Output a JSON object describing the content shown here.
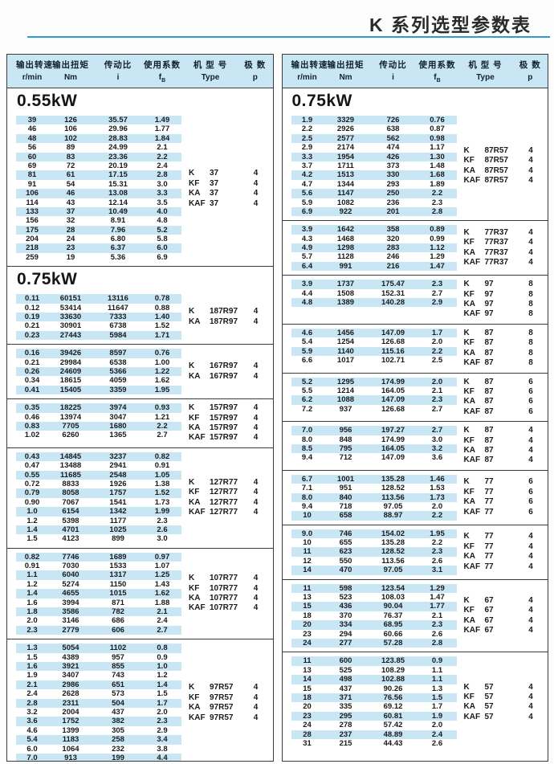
{
  "page": {
    "title": "K 系列选型参数表"
  },
  "table": {
    "headers": [
      {
        "cn": "输出转速",
        "unit": "r/min"
      },
      {
        "cn": "输出扭矩",
        "unit": "Nm"
      },
      {
        "cn": "传动比",
        "unit": "i"
      },
      {
        "cn": "使用系数",
        "unit": "fB"
      },
      {
        "cn": "机 型 号",
        "unit": "Type"
      },
      {
        "cn": "极 数",
        "unit": "p"
      }
    ],
    "left_column": [
      {
        "kind": "power",
        "label": "0.55kW"
      },
      {
        "kind": "section",
        "rows": [
          [
            "39",
            "126",
            "35.57",
            "1.49"
          ],
          [
            "46",
            "106",
            "29.96",
            "1.77"
          ],
          [
            "48",
            "102",
            "28.83",
            "1.84"
          ],
          [
            "56",
            "89",
            "24.99",
            "2.1"
          ],
          [
            "60",
            "83",
            "23.36",
            "2.2"
          ],
          [
            "69",
            "72",
            "20.19",
            "2.4"
          ],
          [
            "81",
            "61",
            "17.15",
            "2.8"
          ],
          [
            "91",
            "54",
            "15.31",
            "3.0"
          ],
          [
            "106",
            "46",
            "13.08",
            "3.3"
          ],
          [
            "114",
            "43",
            "12.14",
            "3.5"
          ],
          [
            "133",
            "37",
            "10.49",
            "4.0"
          ],
          [
            "156",
            "32",
            "8.91",
            "4.8"
          ],
          [
            "175",
            "28",
            "7.96",
            "5.2"
          ],
          [
            "204",
            "24",
            "6.80",
            "5.8"
          ],
          [
            "218",
            "23",
            "6.37",
            "6.0"
          ],
          [
            "259",
            "19",
            "5.36",
            "6.9"
          ]
        ],
        "types": [
          [
            "K",
            "37",
            "4"
          ],
          [
            "KF",
            "37",
            "4"
          ],
          [
            "KA",
            "37",
            "4"
          ],
          [
            "KAF",
            "37",
            "4"
          ]
        ]
      },
      {
        "kind": "power",
        "label": "0.75kW"
      },
      {
        "kind": "section",
        "rows": [
          [
            "0.11",
            "60151",
            "13116",
            "0.78"
          ],
          [
            "0.12",
            "53414",
            "11647",
            "0.88"
          ],
          [
            "0.19",
            "33630",
            "7333",
            "1.40"
          ],
          [
            "0.21",
            "30901",
            "6738",
            "1.52"
          ],
          [
            "0.23",
            "27443",
            "5984",
            "1.71"
          ]
        ],
        "types": [
          [
            "K",
            "187R97",
            "4"
          ],
          [
            "KA",
            "187R97",
            "4"
          ]
        ]
      },
      {
        "kind": "section",
        "rows": [
          [
            "0.16",
            "39426",
            "8597",
            "0.76"
          ],
          [
            "0.21",
            "29984",
            "6538",
            "1.00"
          ],
          [
            "0.26",
            "24609",
            "5366",
            "1.22"
          ],
          [
            "0.34",
            "18615",
            "4059",
            "1.62"
          ],
          [
            "0.41",
            "15405",
            "3359",
            "1.95"
          ]
        ],
        "types": [
          [
            "K",
            "167R97",
            "4"
          ],
          [
            "KA",
            "167R97",
            "4"
          ]
        ]
      },
      {
        "kind": "section",
        "rows": [
          [
            "0.35",
            "18225",
            "3974",
            "0.93"
          ],
          [
            "0.46",
            "13974",
            "3047",
            "1.21"
          ],
          [
            "0.83",
            "7705",
            "1680",
            "2.2"
          ],
          [
            "1.02",
            "6260",
            "1365",
            "2.7"
          ]
        ],
        "types": [
          [
            "K",
            "157R97",
            "4"
          ],
          [
            "KF",
            "157R97",
            "4"
          ],
          [
            "KA",
            "157R97",
            "4"
          ],
          [
            "KAF",
            "157R97",
            "4"
          ]
        ]
      },
      {
        "kind": "section",
        "rows": [
          [
            "0.43",
            "14845",
            "3237",
            "0.82"
          ],
          [
            "0.47",
            "13488",
            "2941",
            "0.91"
          ],
          [
            "0.55",
            "11685",
            "2548",
            "1.05"
          ],
          [
            "0.72",
            "8833",
            "1926",
            "1.38"
          ],
          [
            "0.79",
            "8058",
            "1757",
            "1.52"
          ],
          [
            "0.90",
            "7067",
            "1541",
            "1.73"
          ],
          [
            "1.0",
            "6154",
            "1342",
            "1.99"
          ],
          [
            "1.2",
            "5398",
            "1177",
            "2.3"
          ],
          [
            "1.4",
            "4701",
            "1025",
            "2.6"
          ],
          [
            "1.5",
            "4123",
            "899",
            "3.0"
          ]
        ],
        "types": [
          [
            "K",
            "127R77",
            "4"
          ],
          [
            "KF",
            "127R77",
            "4"
          ],
          [
            "KA",
            "127R77",
            "4"
          ],
          [
            "KAF",
            "127R77",
            "4"
          ]
        ]
      },
      {
        "kind": "section",
        "rows": [
          [
            "0.82",
            "7746",
            "1689",
            "0.97"
          ],
          [
            "0.91",
            "7030",
            "1533",
            "1.07"
          ],
          [
            "1.1",
            "6040",
            "1317",
            "1.25"
          ],
          [
            "1.2",
            "5274",
            "1150",
            "1.43"
          ],
          [
            "1.4",
            "4655",
            "1015",
            "1.62"
          ],
          [
            "1.6",
            "3994",
            "871",
            "1.88"
          ],
          [
            "1.8",
            "3586",
            "782",
            "2.1"
          ],
          [
            "2.0",
            "3146",
            "686",
            "2.4"
          ],
          [
            "2.3",
            "2779",
            "606",
            "2.7"
          ]
        ],
        "types": [
          [
            "K",
            "107R77",
            "4"
          ],
          [
            "KF",
            "107R77",
            "4"
          ],
          [
            "KA",
            "107R77",
            "4"
          ],
          [
            "KAF",
            "107R77",
            "4"
          ]
        ]
      },
      {
        "kind": "section",
        "rows": [
          [
            "1.3",
            "5054",
            "1102",
            "0.8"
          ],
          [
            "1.5",
            "4389",
            "957",
            "0.9"
          ],
          [
            "1.6",
            "3921",
            "855",
            "1.0"
          ],
          [
            "1.9",
            "3407",
            "743",
            "1.2"
          ],
          [
            "2.1",
            "2986",
            "651",
            "1.4"
          ],
          [
            "2.4",
            "2628",
            "573",
            "1.5"
          ],
          [
            "2.8",
            "2311",
            "504",
            "1.7"
          ],
          [
            "3.2",
            "2004",
            "437",
            "2.0"
          ],
          [
            "3.6",
            "1752",
            "382",
            "2.3"
          ],
          [
            "4.6",
            "1399",
            "305",
            "2.9"
          ],
          [
            "5.4",
            "1183",
            "258",
            "3.4"
          ],
          [
            "6.0",
            "1064",
            "232",
            "3.8"
          ],
          [
            "7.0",
            "913",
            "199",
            "4.4"
          ]
        ],
        "types": [
          [
            "K",
            "97R57",
            "4"
          ],
          [
            "KF",
            "97R57",
            "4"
          ],
          [
            "KA",
            "97R57",
            "4"
          ],
          [
            "KAF",
            "97R57",
            "4"
          ]
        ]
      }
    ],
    "right_column": [
      {
        "kind": "power",
        "label": "0.75kW"
      },
      {
        "kind": "section",
        "rows": [
          [
            "1.9",
            "3329",
            "726",
            "0.76"
          ],
          [
            "2.2",
            "2926",
            "638",
            "0.87"
          ],
          [
            "2.5",
            "2577",
            "562",
            "0.98"
          ],
          [
            "2.9",
            "2174",
            "474",
            "1.17"
          ],
          [
            "3.3",
            "1954",
            "426",
            "1.30"
          ],
          [
            "3.7",
            "1711",
            "373",
            "1.48"
          ],
          [
            "4.2",
            "1513",
            "330",
            "1.68"
          ],
          [
            "4.7",
            "1344",
            "293",
            "1.89"
          ],
          [
            "5.6",
            "1147",
            "250",
            "2.2"
          ],
          [
            "5.9",
            "1082",
            "236",
            "2.3"
          ],
          [
            "6.9",
            "922",
            "201",
            "2.8"
          ]
        ],
        "types": [
          [
            "K",
            "87R57",
            "4"
          ],
          [
            "KF",
            "87R57",
            "4"
          ],
          [
            "KA",
            "87R57",
            "4"
          ],
          [
            "KAF",
            "87R57",
            "4"
          ]
        ]
      },
      {
        "kind": "section",
        "rows": [
          [
            "3.9",
            "1642",
            "358",
            "0.89"
          ],
          [
            "4.3",
            "1468",
            "320",
            "0.99"
          ],
          [
            "4.9",
            "1298",
            "283",
            "1.12"
          ],
          [
            "5.7",
            "1128",
            "246",
            "1.29"
          ],
          [
            "6.4",
            "991",
            "216",
            "1.47"
          ]
        ],
        "types": [
          [
            "K",
            "77R37",
            "4"
          ],
          [
            "KF",
            "77R37",
            "4"
          ],
          [
            "KA",
            "77R37",
            "4"
          ],
          [
            "KAF",
            "77R37",
            "4"
          ]
        ]
      },
      {
        "kind": "section",
        "rows": [
          [
            "3.9",
            "1737",
            "175.47",
            "2.3"
          ],
          [
            "4.4",
            "1508",
            "152.31",
            "2.7"
          ],
          [
            "4.8",
            "1389",
            "140.28",
            "2.9"
          ]
        ],
        "types": [
          [
            "K",
            "97",
            "8"
          ],
          [
            "KF",
            "97",
            "8"
          ],
          [
            "KA",
            "97",
            "8"
          ],
          [
            "KAF",
            "97",
            "8"
          ]
        ]
      },
      {
        "kind": "section",
        "rows": [
          [
            "4.6",
            "1456",
            "147.09",
            "1.7"
          ],
          [
            "5.4",
            "1254",
            "126.68",
            "2.0"
          ],
          [
            "5.9",
            "1140",
            "115.16",
            "2.2"
          ],
          [
            "6.6",
            "1017",
            "102.71",
            "2.5"
          ]
        ],
        "types": [
          [
            "K",
            "87",
            "8"
          ],
          [
            "KF",
            "87",
            "8"
          ],
          [
            "KA",
            "87",
            "8"
          ],
          [
            "KAF",
            "87",
            "8"
          ]
        ]
      },
      {
        "kind": "section",
        "rows": [
          [
            "5.2",
            "1295",
            "174.99",
            "2.0"
          ],
          [
            "5.5",
            "1214",
            "164.05",
            "2.1"
          ],
          [
            "6.2",
            "1088",
            "147.09",
            "2.3"
          ],
          [
            "7.2",
            "937",
            "126.68",
            "2.7"
          ]
        ],
        "types": [
          [
            "K",
            "87",
            "6"
          ],
          [
            "KF",
            "87",
            "6"
          ],
          [
            "KA",
            "87",
            "6"
          ],
          [
            "KAF",
            "87",
            "6"
          ]
        ]
      },
      {
        "kind": "section",
        "rows": [
          [
            "7.0",
            "956",
            "197.27",
            "2.7"
          ],
          [
            "8.0",
            "848",
            "174.99",
            "3.0"
          ],
          [
            "8.5",
            "795",
            "164.05",
            "3.2"
          ],
          [
            "9.4",
            "712",
            "147.09",
            "3.6"
          ]
        ],
        "types": [
          [
            "K",
            "87",
            "4"
          ],
          [
            "KF",
            "87",
            "4"
          ],
          [
            "KA",
            "87",
            "4"
          ],
          [
            "KAF",
            "87",
            "4"
          ]
        ]
      },
      {
        "kind": "section",
        "rows": [
          [
            "6.7",
            "1001",
            "135.28",
            "1.46"
          ],
          [
            "7.1",
            "951",
            "128.52",
            "1.53"
          ],
          [
            "8.0",
            "840",
            "113.56",
            "1.73"
          ],
          [
            "9.4",
            "718",
            "97.05",
            "2.0"
          ],
          [
            "10",
            "658",
            "88.97",
            "2.2"
          ]
        ],
        "types": [
          [
            "K",
            "77",
            "6"
          ],
          [
            "KF",
            "77",
            "6"
          ],
          [
            "KA",
            "77",
            "6"
          ],
          [
            "KAF",
            "77",
            "6"
          ]
        ]
      },
      {
        "kind": "section",
        "rows": [
          [
            "9.0",
            "746",
            "154.02",
            "1.95"
          ],
          [
            "10",
            "655",
            "135.28",
            "2.2"
          ],
          [
            "11",
            "623",
            "128.52",
            "2.3"
          ],
          [
            "12",
            "550",
            "113.56",
            "2.6"
          ],
          [
            "14",
            "470",
            "97.05",
            "3.1"
          ]
        ],
        "types": [
          [
            "K",
            "77",
            "4"
          ],
          [
            "KF",
            "77",
            "4"
          ],
          [
            "KA",
            "77",
            "4"
          ],
          [
            "KAF",
            "77",
            "4"
          ]
        ]
      },
      {
        "kind": "section",
        "rows": [
          [
            "11",
            "598",
            "123.54",
            "1.29"
          ],
          [
            "13",
            "523",
            "108.03",
            "1.47"
          ],
          [
            "15",
            "436",
            "90.04",
            "1.77"
          ],
          [
            "18",
            "370",
            "76.37",
            "2.1"
          ],
          [
            "20",
            "334",
            "68.95",
            "2.3"
          ],
          [
            "23",
            "294",
            "60.66",
            "2.6"
          ],
          [
            "24",
            "277",
            "57.28",
            "2.8"
          ]
        ],
        "types": [
          [
            "K",
            "67",
            "4"
          ],
          [
            "KF",
            "67",
            "4"
          ],
          [
            "KA",
            "67",
            "4"
          ],
          [
            "KAF",
            "67",
            "4"
          ]
        ]
      },
      {
        "kind": "section",
        "rows": [
          [
            "11",
            "600",
            "123.85",
            "0.9"
          ],
          [
            "13",
            "525",
            "108.29",
            "1.1"
          ],
          [
            "14",
            "498",
            "102.88",
            "1.1"
          ],
          [
            "15",
            "437",
            "90.26",
            "1.3"
          ],
          [
            "18",
            "371",
            "76.56",
            "1.5"
          ],
          [
            "20",
            "335",
            "69.12",
            "1.7"
          ],
          [
            "23",
            "295",
            "60.81",
            "1.9"
          ],
          [
            "24",
            "278",
            "57.42",
            "2.0"
          ],
          [
            "28",
            "237",
            "48.89",
            "2.4"
          ],
          [
            "31",
            "215",
            "44.43",
            "2.6"
          ]
        ],
        "types": [
          [
            "K",
            "57",
            "4"
          ],
          [
            "KF",
            "57",
            "4"
          ],
          [
            "KA",
            "57",
            "4"
          ],
          [
            "KAF",
            "57",
            "4"
          ]
        ]
      }
    ]
  },
  "colors": {
    "stripe": "#c9e6f4",
    "header_bg": "#c9e6f4",
    "rule_blue": "#2d9dd1",
    "border": "#3a3a3a"
  }
}
